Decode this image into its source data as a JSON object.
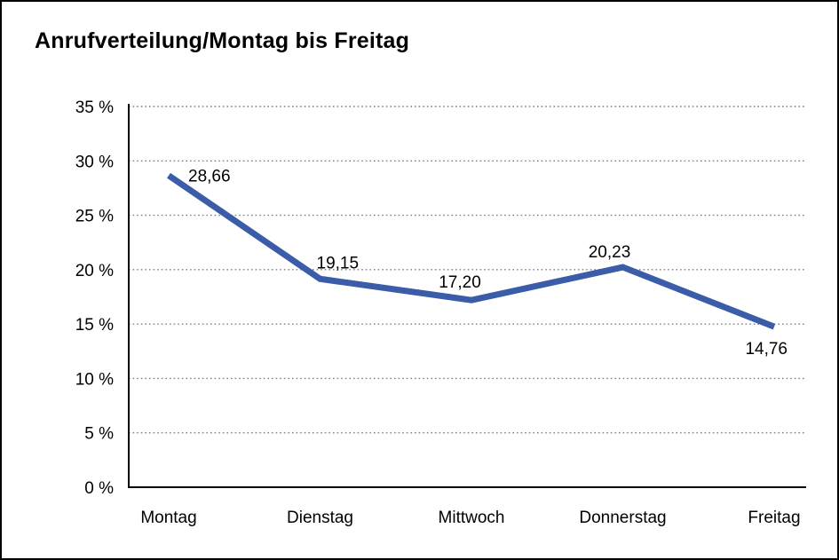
{
  "title": "Anrufverteilung/Montag bis Freitag",
  "chart_data": {
    "type": "line",
    "title": "Anrufverteilung/Montag bis Freitag",
    "categories": [
      "Montag",
      "Dienstag",
      "Mittwoch",
      "Donnerstag",
      "Freitag"
    ],
    "values": [
      28.66,
      19.15,
      17.2,
      20.23,
      14.76
    ],
    "value_labels": [
      "28,66",
      "19,15",
      "17,20",
      "20,23",
      "14,76"
    ],
    "xlabel": "",
    "ylabel": "",
    "ylim": [
      0,
      35
    ],
    "ytick_step": 5,
    "ytick_labels": [
      "0 %",
      "5 %",
      "10 %",
      "15 %",
      "20 %",
      "25 %",
      "30 %",
      "35 %"
    ],
    "grid": "horizontal-dotted",
    "legend_position": "none",
    "line_color": "#3B5CA8"
  },
  "colors": {
    "line": "#3B5CA8",
    "grid": "#7f7f7f",
    "axis": "#000000",
    "background": "#ffffff",
    "frame_border": "#000000",
    "text": "#000000"
  }
}
